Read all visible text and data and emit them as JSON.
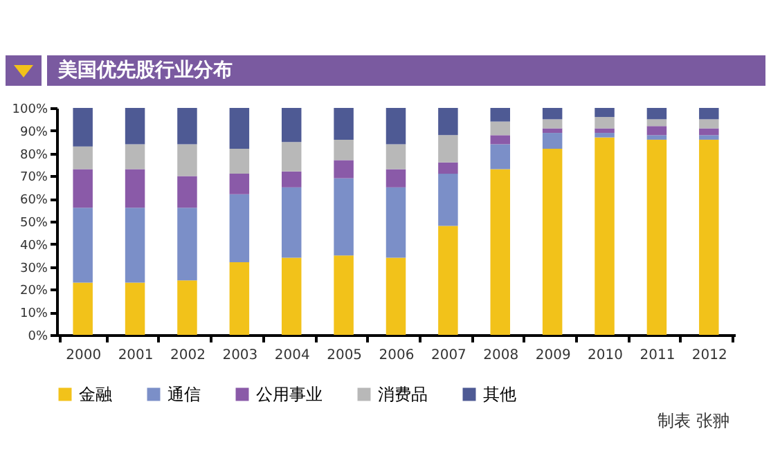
{
  "chart_data": {
    "type": "bar",
    "title": "美国优先股行业分布",
    "stacked": true,
    "categories": [
      "2000",
      "2001",
      "2002",
      "2003",
      "2004",
      "2005",
      "2006",
      "2007",
      "2008",
      "2009",
      "2010",
      "2011",
      "2012"
    ],
    "series": [
      {
        "name": "金融",
        "color": "#f2c21a",
        "values": [
          23,
          23,
          24,
          32,
          34,
          35,
          34,
          48,
          73,
          82,
          87,
          86,
          86
        ]
      },
      {
        "name": "通信",
        "color": "#7b8fc8",
        "values": [
          33,
          33,
          32,
          30,
          31,
          34,
          31,
          23,
          11,
          7,
          2,
          2,
          2
        ]
      },
      {
        "name": "公用事业",
        "color": "#8a5aa8",
        "values": [
          17,
          17,
          14,
          9,
          7,
          8,
          8,
          5,
          4,
          2,
          2,
          4,
          3
        ]
      },
      {
        "name": "消费品",
        "color": "#b8b8b8",
        "values": [
          10,
          11,
          14,
          11,
          13,
          9,
          11,
          12,
          6,
          4,
          5,
          3,
          4
        ]
      },
      {
        "name": "其他",
        "color": "#4e5a94",
        "values": [
          17,
          16,
          16,
          18,
          15,
          14,
          16,
          12,
          6,
          5,
          4,
          5,
          5
        ]
      }
    ],
    "ylim": [
      0,
      100
    ],
    "yticks": [
      {
        "value": 0,
        "label": "0%"
      },
      {
        "value": 10,
        "label": "10%"
      },
      {
        "value": 20,
        "label": "20%"
      },
      {
        "value": 30,
        "label": "30%"
      },
      {
        "value": 40,
        "label": "40%"
      },
      {
        "value": 50,
        "label": "50%"
      },
      {
        "value": 60,
        "label": "60%"
      },
      {
        "value": 70,
        "label": "70%"
      },
      {
        "value": 80,
        "label": "80%"
      },
      {
        "value": 90,
        "label": "90%"
      },
      {
        "value": 100,
        "label": "100%"
      }
    ],
    "grid": false,
    "legend": "bottom",
    "annotations": [
      "制表 张翀"
    ]
  }
}
